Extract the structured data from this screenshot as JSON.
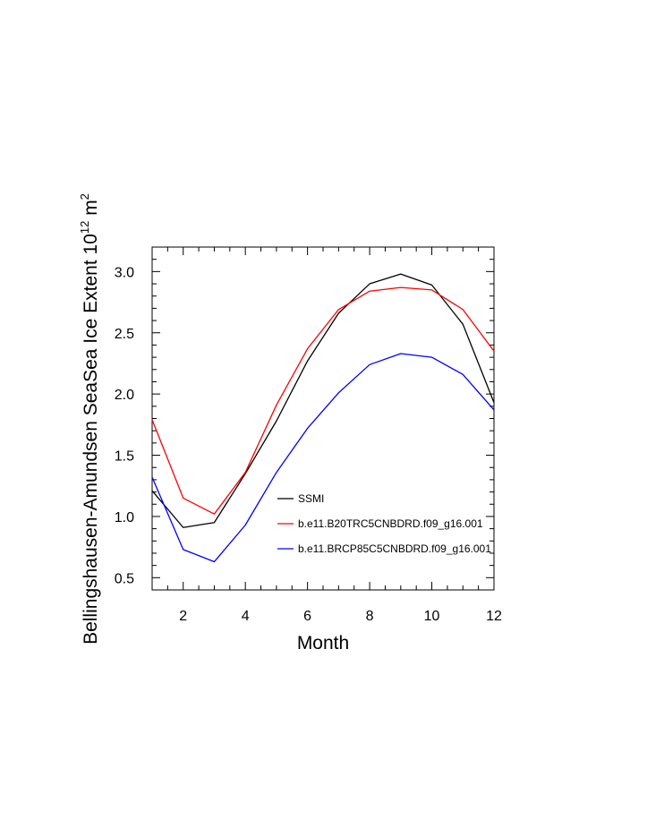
{
  "chart_data": {
    "type": "line",
    "title": "",
    "xlabel": "Month",
    "ylabel": "Bellingshausen-Amundsen SeaSea Ice Extent 10",
    "ylabel_exp": "12",
    "ylabel_unit": " m",
    "ylabel_unit_exp": "2",
    "xlim": [
      1,
      12
    ],
    "ylim": [
      0.4,
      3.2
    ],
    "x_ticks": [
      2,
      4,
      6,
      8,
      10,
      12
    ],
    "x_tick_labels": [
      "2",
      "4",
      "6",
      "8",
      "10",
      "12"
    ],
    "y_ticks": [
      0.5,
      1.0,
      1.5,
      2.0,
      2.5,
      3.0
    ],
    "y_tick_labels": [
      "0.5",
      "1.0",
      "1.5",
      "2.0",
      "2.5",
      "3.0"
    ],
    "x": [
      1,
      2,
      3,
      4,
      5,
      6,
      7,
      8,
      9,
      10,
      11,
      12
    ],
    "grid": false,
    "legend_position": "lower-right",
    "series": [
      {
        "name": "SSMI",
        "color": "#000000",
        "values": [
          1.21,
          0.91,
          0.95,
          1.35,
          1.78,
          2.27,
          2.66,
          2.9,
          2.98,
          2.89,
          2.57,
          1.93
        ]
      },
      {
        "name": "b.e11.B20TRC5CNBDRD.f09_g16.001",
        "color": "#ff0000",
        "values": [
          1.79,
          1.15,
          1.02,
          1.36,
          1.91,
          2.37,
          2.69,
          2.84,
          2.87,
          2.85,
          2.69,
          2.35
        ]
      },
      {
        "name": "b.e11.BRCP85C5CNBDRD.f09_g16.001",
        "color": "#0000ff",
        "values": [
          1.32,
          0.73,
          0.63,
          0.93,
          1.36,
          1.72,
          2.01,
          2.24,
          2.33,
          2.3,
          2.16,
          1.87
        ]
      }
    ]
  }
}
